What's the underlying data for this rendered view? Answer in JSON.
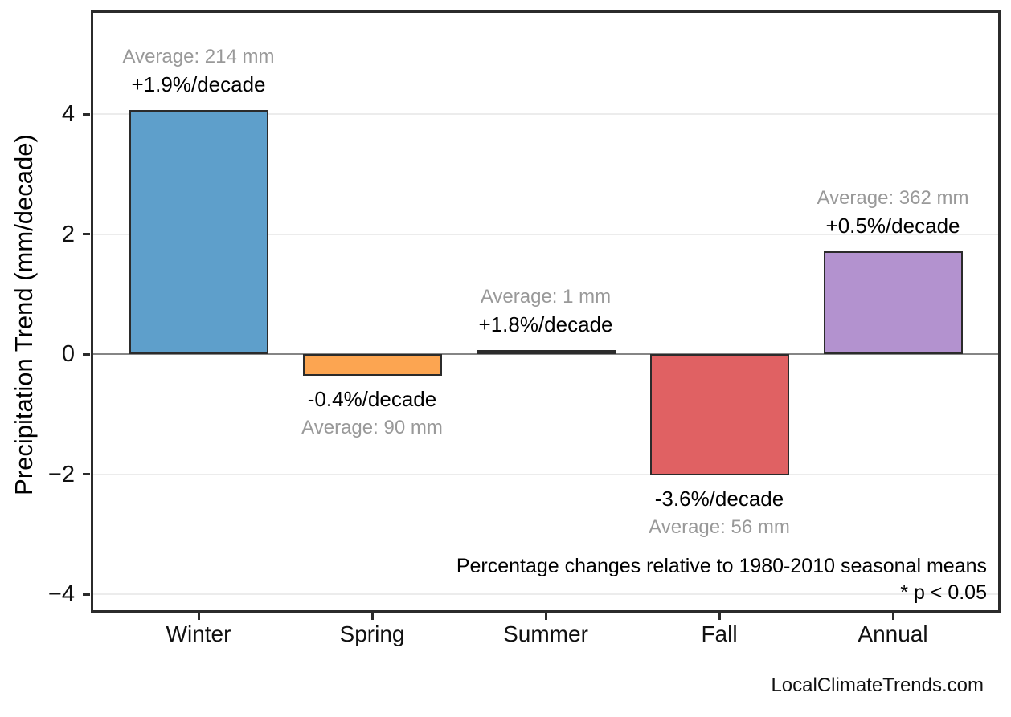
{
  "chart_data": {
    "type": "bar",
    "title": "",
    "categories": [
      "Winter",
      "Spring",
      "Summer",
      "Fall",
      "Annual"
    ],
    "values": [
      4.07,
      -0.36,
      0.02,
      -2.02,
      1.71
    ],
    "averages_mm": [
      214,
      90,
      1,
      56,
      362
    ],
    "avg_labels": [
      "Average: 214 mm",
      "Average: 90 mm",
      "Average: 1 mm",
      "Average: 56 mm",
      "Average: 362 mm"
    ],
    "pct_labels": [
      "+1.9%/decade",
      "-0.4%/decade",
      "+1.8%/decade",
      "-3.6%/decade",
      "+0.5%/decade"
    ],
    "bar_colors": [
      "#5E9FCB",
      "#FCA551",
      "#2F4734",
      "#E06163",
      "#B392CF"
    ],
    "bar_edge_color": "#2b2b2b",
    "xlabel": "",
    "ylabel": "Precipitation Trend (mm/decade)",
    "yticks": [
      -4,
      -2,
      0,
      2,
      4
    ],
    "ytick_labels": [
      "−4",
      "−2",
      "0",
      "2",
      "4"
    ],
    "ylim": [
      -4.31,
      5.73
    ],
    "grid": "horizontal-light",
    "gridline_color": "#ececec",
    "zero_line_color": "#858585",
    "avg_label_color": "#999999",
    "pct_label_color": "#000000",
    "annotation_line1": "Percentage changes relative to 1980-2010 seasonal means",
    "annotation_line2": "* p < 0.05",
    "watermark": "LocalClimateTrends.com"
  }
}
